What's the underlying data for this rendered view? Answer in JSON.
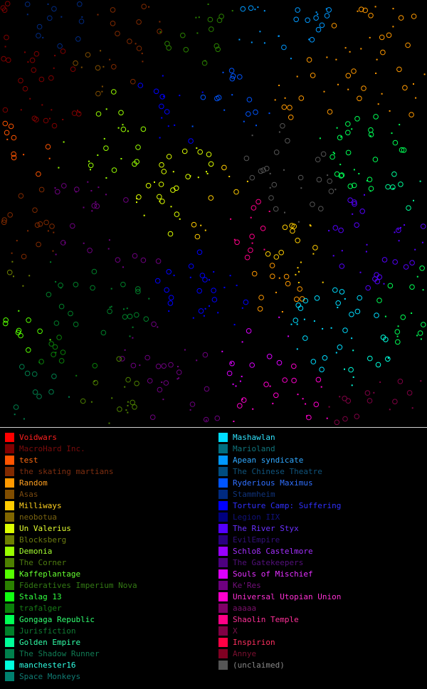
{
  "legend": {
    "left": [
      {
        "name": "Voidwars",
        "color": "#ff0000",
        "text_color": "#ff2020"
      },
      {
        "name": "MacroHard Inc.",
        "color": "#800000",
        "text_color": "#7a0c0c"
      },
      {
        "name": "test",
        "color": "#ff5500",
        "text_color": "#ff6a10"
      },
      {
        "name": "the skating martians",
        "color": "#802a00",
        "text_color": "#7e2e10"
      },
      {
        "name": "Random",
        "color": "#ff9900",
        "text_color": "#ffa020"
      },
      {
        "name": "Asas",
        "color": "#804d00",
        "text_color": "#7a4a10"
      },
      {
        "name": "Milliways",
        "color": "#ffcc00",
        "text_color": "#ffd020"
      },
      {
        "name": "neobotua",
        "color": "#806600",
        "text_color": "#7a6410"
      },
      {
        "name": "Un Valerius",
        "color": "#ddff00",
        "text_color": "#e4ff30"
      },
      {
        "name": "Blocksberg",
        "color": "#6e8000",
        "text_color": "#6c7c10"
      },
      {
        "name": "Demonia",
        "color": "#99ff00",
        "text_color": "#a4ff30"
      },
      {
        "name": "The Corner",
        "color": "#4d8000",
        "text_color": "#4e7c10"
      },
      {
        "name": "Kaffeplantage",
        "color": "#55ff00",
        "text_color": "#66ff30"
      },
      {
        "name": "Föderatives Imperium Nova",
        "color": "#2a8000",
        "text_color": "#347c14"
      },
      {
        "name": "Stalag 13",
        "color": "#11ff11",
        "text_color": "#33ff40"
      },
      {
        "name": "trafalger",
        "color": "#0a800a",
        "text_color": "#167c16"
      },
      {
        "name": "Gongaga Republic",
        "color": "#00ff55",
        "text_color": "#30ff70"
      },
      {
        "name": "Jurisfiction",
        "color": "#00802a",
        "text_color": "#107c34"
      },
      {
        "name": "Golden Empire",
        "color": "#00ff99",
        "text_color": "#30ffa8"
      },
      {
        "name": "The Shadow Runner",
        "color": "#00804d",
        "text_color": "#107c54"
      },
      {
        "name": "manchester16",
        "color": "#00ffdd",
        "text_color": "#30ffe4"
      },
      {
        "name": "Space Monkeys",
        "color": "#00806e",
        "text_color": "#107c74"
      }
    ],
    "right": [
      {
        "name": "Mashawlan",
        "color": "#00ddff",
        "text_color": "#30e4ff"
      },
      {
        "name": "Marioland",
        "color": "#006e80",
        "text_color": "#10747c"
      },
      {
        "name": "Apean syndicate",
        "color": "#0099ff",
        "text_color": "#30a8ff"
      },
      {
        "name": "The Chinese Theatre",
        "color": "#004d80",
        "text_color": "#10547c"
      },
      {
        "name": "Ryderious Maximus",
        "color": "#0055ff",
        "text_color": "#3070ff"
      },
      {
        "name": "Stammheim",
        "color": "#002a80",
        "text_color": "#10347c"
      },
      {
        "name": "Torture Camp: Suffering",
        "color": "#0000ff",
        "text_color": "#3030ff"
      },
      {
        "name": "Legion IIX",
        "color": "#000080",
        "text_color": "#10107c"
      },
      {
        "name": "The River Styx",
        "color": "#5500ff",
        "text_color": "#6a30ff"
      },
      {
        "name": "EvilEmpire",
        "color": "#2a0080",
        "text_color": "#34107c"
      },
      {
        "name": "Schloß Castelmore",
        "color": "#9900ff",
        "text_color": "#a430ff"
      },
      {
        "name": "The Gatekeepers",
        "color": "#4d0080",
        "text_color": "#54107c"
      },
      {
        "name": "Souls of Mischief",
        "color": "#dd00ff",
        "text_color": "#e430ff"
      },
      {
        "name": "Ke'Res",
        "color": "#6e0080",
        "text_color": "#74107c"
      },
      {
        "name": "Universal Utopian Union",
        "color": "#ff00cc",
        "text_color": "#ff30d4"
      },
      {
        "name": "aaaaa",
        "color": "#800066",
        "text_color": "#7c106c"
      },
      {
        "name": "Shaolin Temple",
        "color": "#ff0088",
        "text_color": "#ff3098"
      },
      {
        "name": "X",
        "color": "#800044",
        "text_color": "#7c104c"
      },
      {
        "name": "Inspirion",
        "color": "#ff0044",
        "text_color": "#ff3060"
      },
      {
        "name": "Annye",
        "color": "#800022",
        "text_color": "#7c1030"
      },
      {
        "name": "(unclaimed)",
        "color": "#555555",
        "text_color": "#888888"
      }
    ]
  }
}
